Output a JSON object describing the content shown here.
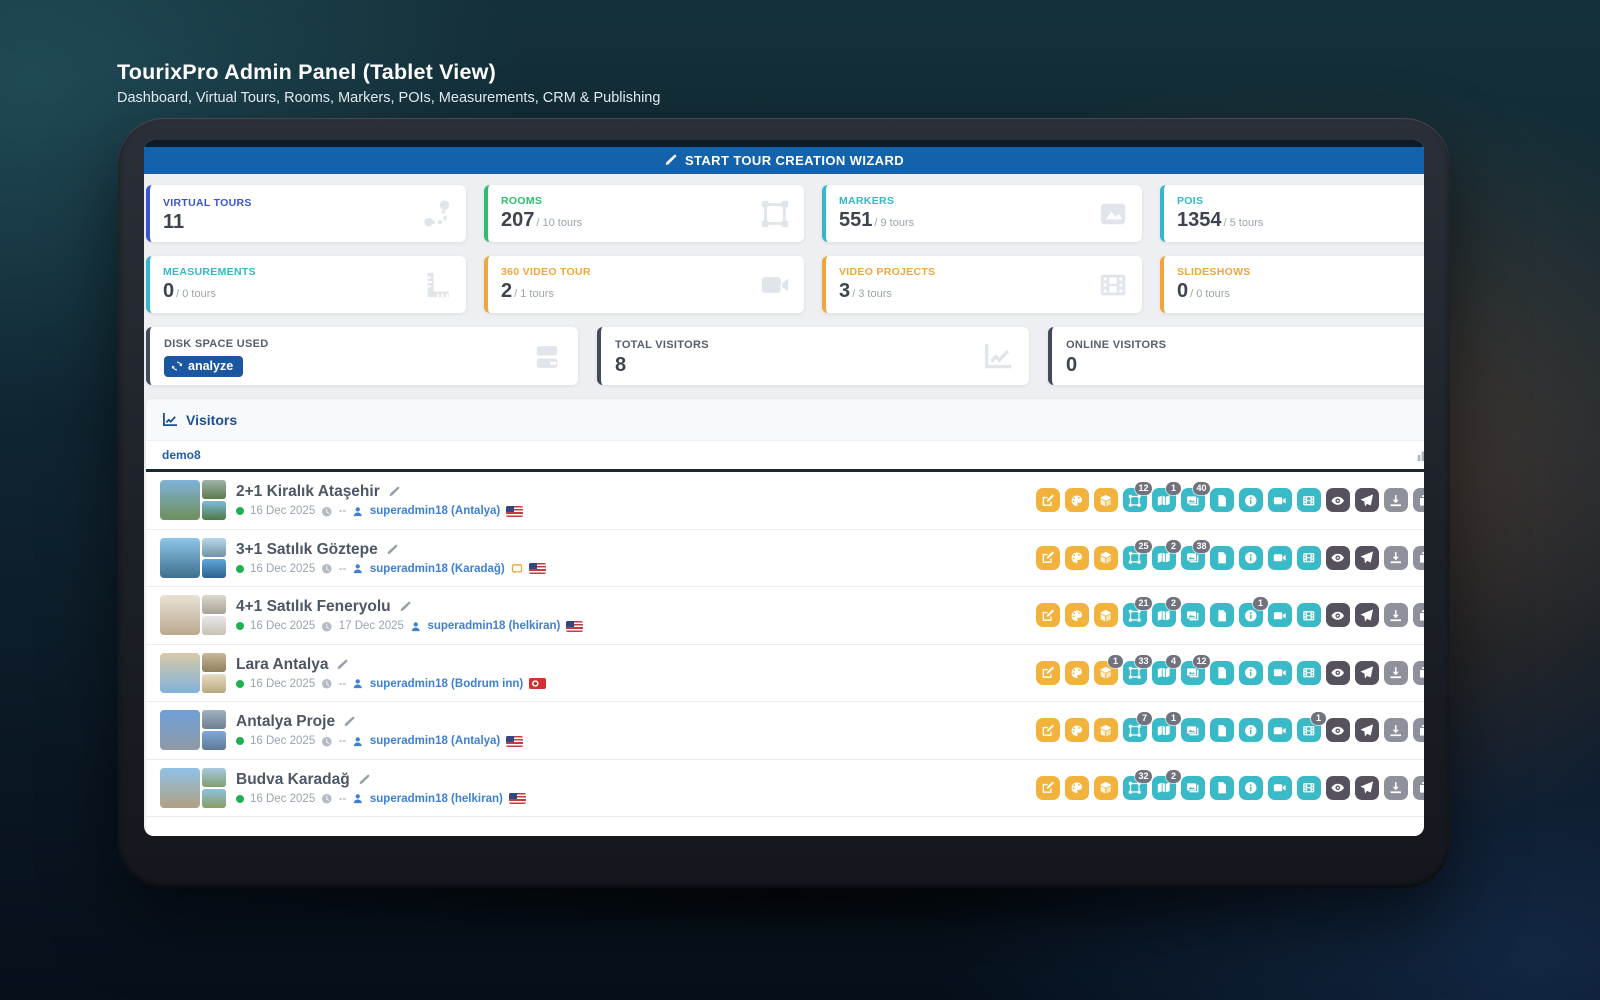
{
  "page_header": {
    "title": "TourixPro Admin Panel (Tablet View)",
    "subtitle": "Dashboard, Virtual Tours, Rooms, Markers, POIs, Measurements, CRM & Publishing"
  },
  "wizard_bar": {
    "label": "START TOUR CREATION WIZARD",
    "icon": "pencil-icon"
  },
  "colors": {
    "wizard_blue": "#1362ac",
    "blue_accent": "#3d55cc",
    "green_accent": "#2ebd6e",
    "teal_accent": "#36b6c8",
    "orange_accent": "#f1a63c",
    "slate_accent": "#414b5a",
    "button_yellow": "#f2b33d",
    "button_teal": "#3ab9c7",
    "button_dark": "#55525e",
    "button_gray": "#8e919b",
    "button_red": "#e8483d",
    "badge_gray": "#72727e",
    "status_green": "#1fb053"
  },
  "stat_cards": [
    {
      "label": "VIRTUAL TOURS",
      "value": "11",
      "suffix": "",
      "accent": "#3d55cc",
      "icon": "route-icon"
    },
    {
      "label": "ROOMS",
      "value": "207",
      "suffix": "/ 10 tours",
      "accent": "#2ebd6e",
      "icon": "vector-square-icon"
    },
    {
      "label": "MARKERS",
      "value": "551",
      "suffix": "/ 9 tours",
      "accent": "#36b6c8",
      "icon": "image-icon"
    },
    {
      "label": "POIS",
      "value": "1354",
      "suffix": "/ 5 tours",
      "accent": "#36b6c8",
      "icon": ""
    },
    {
      "label": "MEASUREMENTS",
      "value": "0",
      "suffix": "/ 0 tours",
      "accent": "#36b6c8",
      "icon": "ruler-icon"
    },
    {
      "label": "360 VIDEO TOUR",
      "value": "2",
      "suffix": "/ 1 tours",
      "accent": "#f1a63c",
      "icon": "video-icon"
    },
    {
      "label": "VIDEO PROJECTS",
      "value": "3",
      "suffix": "/ 3 tours",
      "accent": "#f1a63c",
      "icon": "film-icon"
    },
    {
      "label": "SLIDESHOWS",
      "value": "0",
      "suffix": "/ 0 tours",
      "accent": "#f1a63c",
      "icon": ""
    }
  ],
  "info_cards": [
    {
      "label": "DISK SPACE USED",
      "value": "",
      "button_label": "analyze",
      "icon": "storage-icon"
    },
    {
      "label": "TOTAL VISITORS",
      "value": "8",
      "button_label": "",
      "icon": "chart-line-icon"
    },
    {
      "label": "ONLINE VISITORS",
      "value": "0",
      "button_label": "",
      "icon": ""
    }
  ],
  "visitors_section": {
    "title": "Visitors",
    "tenant": "demo8"
  },
  "action_buttons": [
    {
      "key": "edit",
      "name": "edit-button",
      "icon": "pencil-square-icon",
      "color": "yellow"
    },
    {
      "key": "design",
      "name": "design-button",
      "icon": "palette-icon",
      "color": "yellow"
    },
    {
      "key": "cube",
      "name": "cube-360-button",
      "icon": "cube-icon",
      "color": "yellow"
    },
    {
      "key": "rooms",
      "name": "rooms-button",
      "icon": "vector-square-icon",
      "color": "teal"
    },
    {
      "key": "map",
      "name": "map-button",
      "icon": "map-icon",
      "color": "teal"
    },
    {
      "key": "gallery",
      "name": "gallery-button",
      "icon": "images-icon",
      "color": "teal"
    },
    {
      "key": "file",
      "name": "file-button",
      "icon": "file-icon",
      "color": "teal"
    },
    {
      "key": "info",
      "name": "info-button",
      "icon": "info-icon",
      "color": "teal"
    },
    {
      "key": "video",
      "name": "video-button",
      "icon": "video-icon",
      "color": "teal"
    },
    {
      "key": "film",
      "name": "film-button",
      "icon": "film-icon",
      "color": "teal"
    },
    {
      "key": "preview",
      "name": "preview-button",
      "icon": "eye-icon",
      "color": "dark"
    },
    {
      "key": "publish",
      "name": "publish-button",
      "icon": "paper-plane-icon",
      "color": "dark"
    },
    {
      "key": "download",
      "name": "download-button",
      "icon": "download-icon",
      "color": "gray"
    },
    {
      "key": "duplicate",
      "name": "duplicate-button",
      "icon": "copy-icon",
      "color": "gray"
    },
    {
      "key": "delete",
      "name": "delete-button",
      "icon": "trash-icon",
      "color": "red"
    }
  ],
  "tours": [
    {
      "title": "2+1 Kiralık Ataşehir",
      "date": "16 Dec 2025",
      "expiry": "--",
      "user": "superadmin18 (Antalya)",
      "flag": "us",
      "note": false,
      "badges": {
        "rooms": "12",
        "map": "1",
        "gallery": "40"
      },
      "thumb": {
        "main": [
          "#7fb2d9",
          "#6f8f5a"
        ],
        "a": [
          "#9fb3a8",
          "#5d7a4f"
        ],
        "b": [
          "#7fb9dd",
          "#4d7a43"
        ]
      }
    },
    {
      "title": "3+1 Satılık Göztepe",
      "date": "16 Dec 2025",
      "expiry": "--",
      "user": "superadmin18 (Karadağ)",
      "flag": "us",
      "note": true,
      "badges": {
        "rooms": "25",
        "map": "2",
        "gallery": "38"
      },
      "thumb": {
        "main": [
          "#8ec6e8",
          "#3e6f8e"
        ],
        "a": [
          "#b9d7e8",
          "#6f93a8"
        ],
        "b": [
          "#5fa8d8",
          "#2e5f8e"
        ]
      }
    },
    {
      "title": "4+1 Satılık Feneryolu",
      "date": "16 Dec 2025",
      "expiry": "17 Dec 2025",
      "user": "superadmin18 (helkiran)",
      "flag": "us",
      "note": false,
      "badges": {
        "rooms": "21",
        "map": "2",
        "info": "1"
      },
      "thumb": {
        "main": [
          "#e8e2d5",
          "#b9a98f"
        ],
        "a": [
          "#ddd8cc",
          "#a8a296"
        ],
        "b": [
          "#e8e8e8",
          "#c9c2b2"
        ]
      }
    },
    {
      "title": "Lara Antalya",
      "date": "16 Dec 2025",
      "expiry": "--",
      "user": "superadmin18 (Bodrum inn)",
      "flag": "tr",
      "note": false,
      "badges": {
        "cube": "1",
        "rooms": "33",
        "map": "4",
        "gallery": "12"
      },
      "thumb": {
        "main": [
          "#d9c9a8",
          "#7fb2d9"
        ],
        "a": [
          "#c9b896",
          "#8f7f5f"
        ],
        "b": [
          "#e8ddc2",
          "#b9a882"
        ]
      }
    },
    {
      "title": "Antalya Proje",
      "date": "16 Dec 2025",
      "expiry": "--",
      "user": "superadmin18 (Antalya)",
      "flag": "us",
      "note": false,
      "badges": {
        "rooms": "7",
        "map": "1",
        "film": "1"
      },
      "thumb": {
        "main": [
          "#6f9fd9",
          "#8f9aa5"
        ],
        "a": [
          "#9fb2c2",
          "#6f7f8f"
        ],
        "b": [
          "#7fa8d9",
          "#5f7a96"
        ]
      }
    },
    {
      "title": "Budva Karadağ",
      "date": "16 Dec 2025",
      "expiry": "--",
      "user": "superadmin18 (helkiran)",
      "flag": "us",
      "note": false,
      "badges": {
        "rooms": "32",
        "map": "2"
      },
      "thumb": {
        "main": [
          "#8fc2e8",
          "#b0a080"
        ],
        "a": [
          "#a8c9e0",
          "#7f9f70"
        ],
        "b": [
          "#90bfe0",
          "#87a060"
        ]
      }
    }
  ]
}
